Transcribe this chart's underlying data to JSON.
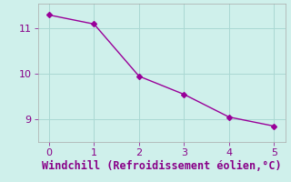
{
  "x": [
    0,
    1,
    2,
    3,
    4,
    5
  ],
  "y": [
    11.3,
    11.1,
    9.95,
    9.55,
    9.05,
    8.85
  ],
  "line_color": "#990099",
  "bg_color": "#cff0eb",
  "grid_color": "#aad8d3",
  "xlabel": "Windchill (Refroidissement éolien,°C)",
  "xlabel_color": "#880088",
  "tick_color": "#880088",
  "axis_color": "#aaaaaa",
  "ylim": [
    8.5,
    11.55
  ],
  "xlim": [
    -0.25,
    5.25
  ],
  "yticks": [
    9,
    10,
    11
  ],
  "xticks": [
    0,
    1,
    2,
    3,
    4,
    5
  ],
  "marker": "D",
  "marker_size": 3,
  "line_width": 1.0,
  "xlabel_fontsize": 8.5,
  "tick_fontsize": 8
}
